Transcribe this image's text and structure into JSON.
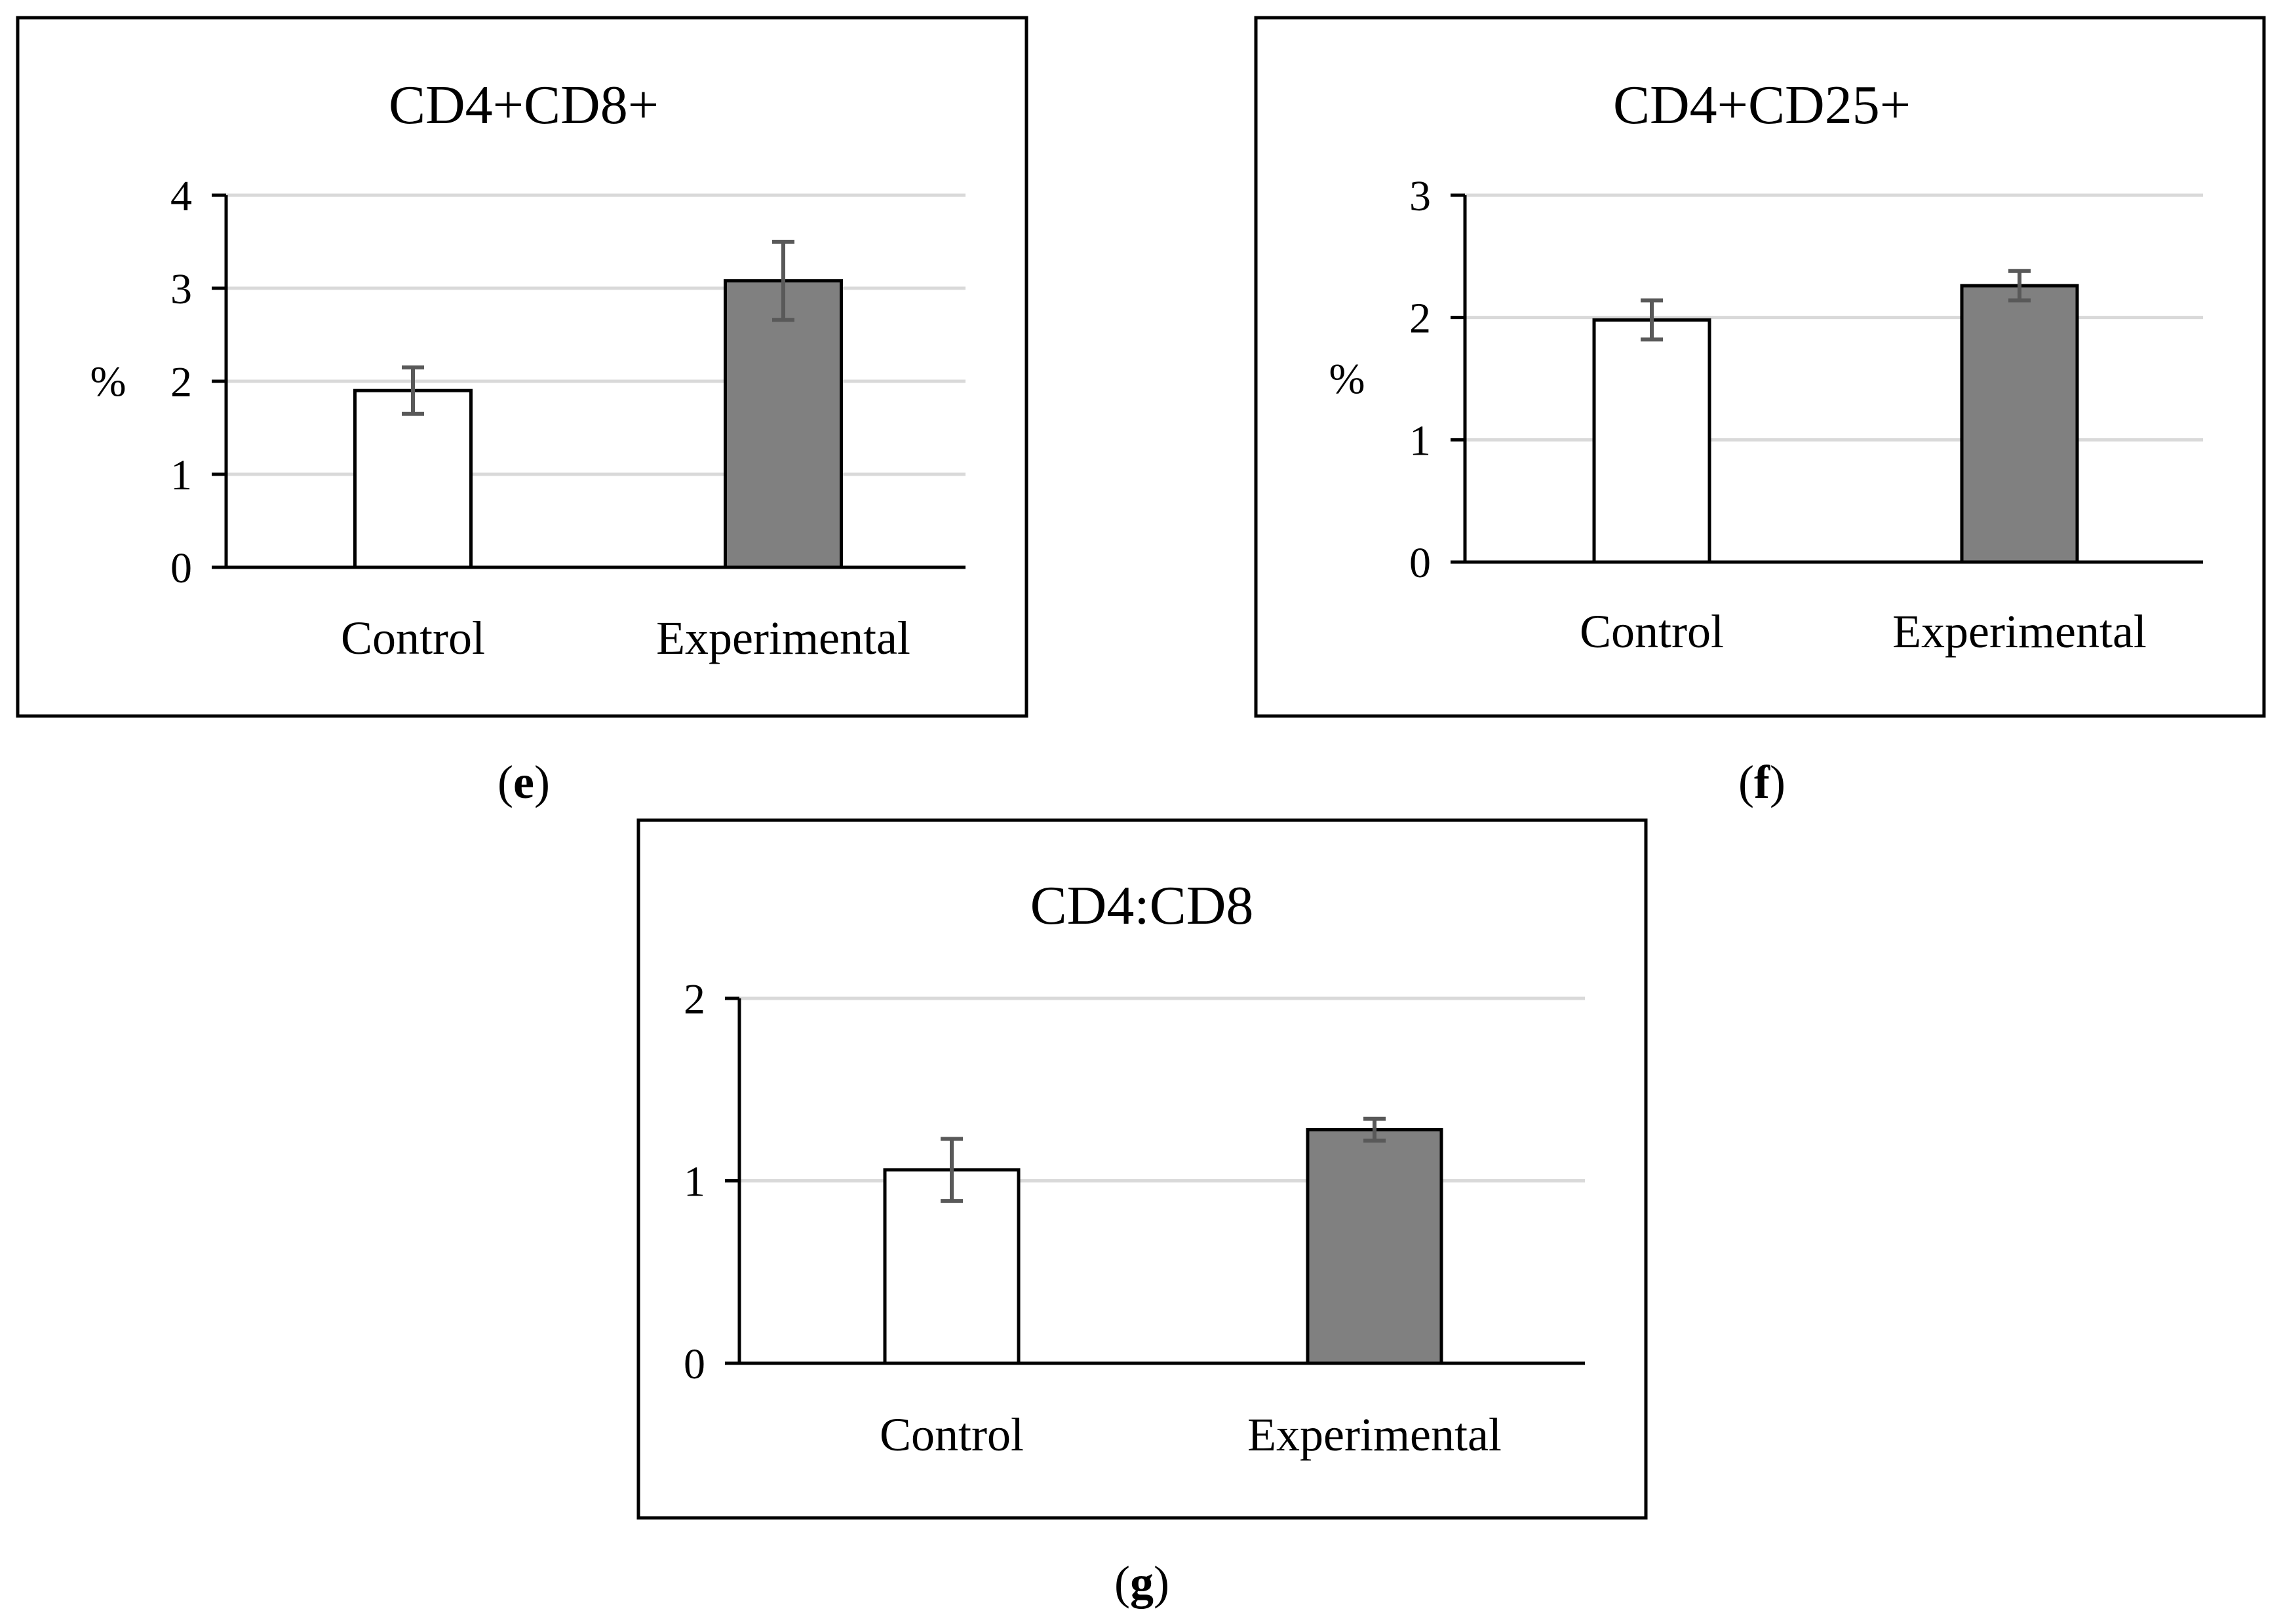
{
  "colors": {
    "control": "#ffffff",
    "experimental": "#808080",
    "grid": "#d9d9d9",
    "error_bar": "#595959"
  },
  "chart_data": [
    {
      "type": "bar",
      "panel_label": "(e)",
      "panel_letter": "e",
      "title": "CD4+CD8+",
      "ylabel": "%",
      "ylim": [
        0,
        4
      ],
      "yticks": [
        "0",
        "1",
        "2",
        "3",
        "4"
      ],
      "categories": [
        "Control",
        "Experimental"
      ],
      "values": [
        1.9,
        3.08
      ],
      "errors": [
        0.25,
        0.42
      ]
    },
    {
      "type": "bar",
      "panel_label": "(f)",
      "panel_letter": "f",
      "title": "CD4+CD25+",
      "ylabel": "%",
      "ylim": [
        0,
        3
      ],
      "yticks": [
        "0",
        "1",
        "2",
        "3"
      ],
      "categories": [
        "Control",
        "Experimental"
      ],
      "values": [
        1.98,
        2.26
      ],
      "errors": [
        0.16,
        0.12
      ]
    },
    {
      "type": "bar",
      "panel_label": "(g)",
      "panel_letter": "g",
      "title": "CD4:CD8",
      "ylabel": "",
      "ylim": [
        0,
        2
      ],
      "yticks": [
        "0",
        "1",
        "2"
      ],
      "categories": [
        "Control",
        "Experimental"
      ],
      "values": [
        1.06,
        1.28
      ],
      "errors": [
        0.17,
        0.06
      ]
    }
  ]
}
